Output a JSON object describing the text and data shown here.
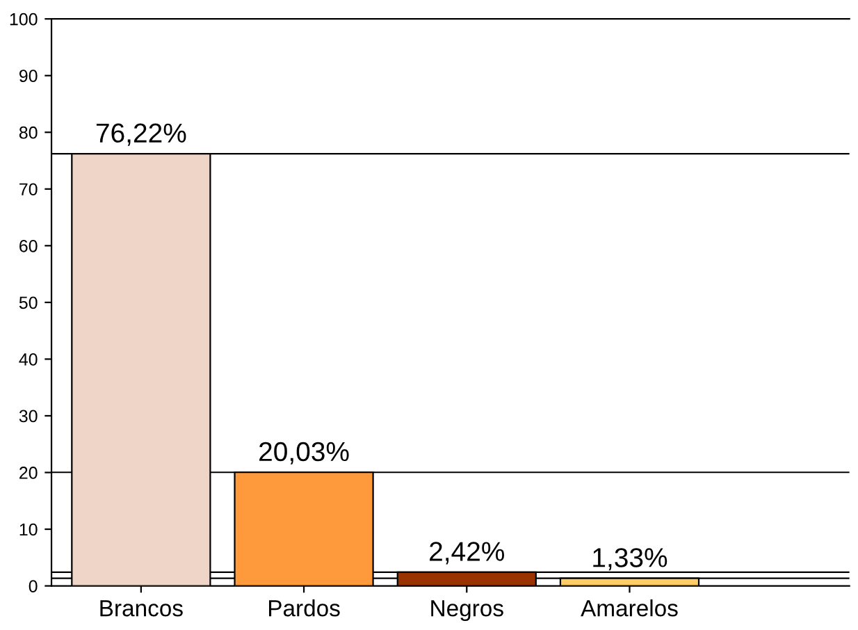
{
  "chart_data": {
    "type": "bar",
    "categories": [
      "Brancos",
      "Pardos",
      "Negros",
      "Amarelos"
    ],
    "values": [
      76.22,
      20.03,
      2.42,
      1.33
    ],
    "colors": [
      "#efd5c8",
      "#ff9a3c",
      "#993300",
      "#ffcc66"
    ],
    "value_labels": [
      "76,22%",
      "20,03%",
      "2,42%",
      "1,33%"
    ],
    "ylim": [
      0,
      100
    ],
    "yticks": [
      0,
      10,
      20,
      30,
      40,
      50,
      60,
      70,
      80,
      90,
      100
    ],
    "ref_lines": [
      {
        "axis": "y",
        "value": 76.22,
        "color": "#000000"
      },
      {
        "axis": "y",
        "value": 20.03,
        "color": "#000000"
      },
      {
        "axis": "y",
        "value": 2.42,
        "color": "#000000"
      },
      {
        "axis": "y",
        "value": 1.33,
        "color": "#000000"
      }
    ],
    "grid": false,
    "legend": false
  }
}
